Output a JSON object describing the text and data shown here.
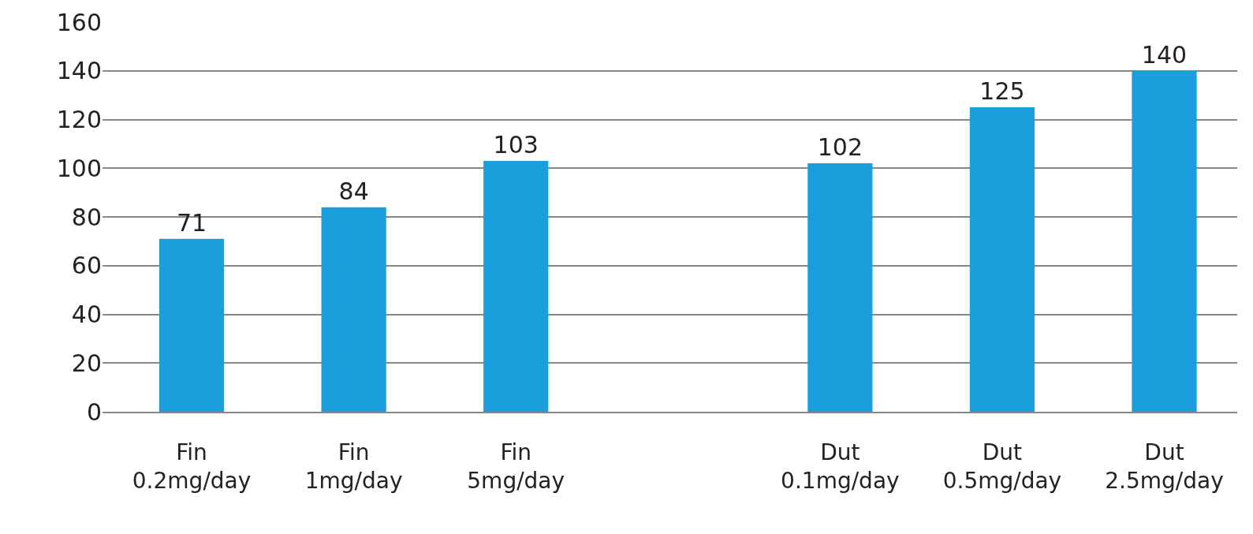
{
  "chart_data": {
    "type": "bar",
    "categories": [
      "Fin\n0.2mg/day",
      "Fin\n1mg/day",
      "Fin\n5mg/day",
      null,
      "Dut\n0.1mg/day",
      "Dut\n0.5mg/day",
      "Dut\n2.5mg/day"
    ],
    "values": [
      71,
      84,
      103,
      null,
      102,
      125,
      140
    ],
    "color": "#1a9fdc",
    "ylim": [
      0,
      160
    ],
    "yticks": [
      0,
      20,
      40,
      60,
      80,
      100,
      120,
      140,
      160
    ],
    "grid": "y",
    "data_labels": true,
    "legend": false
  }
}
